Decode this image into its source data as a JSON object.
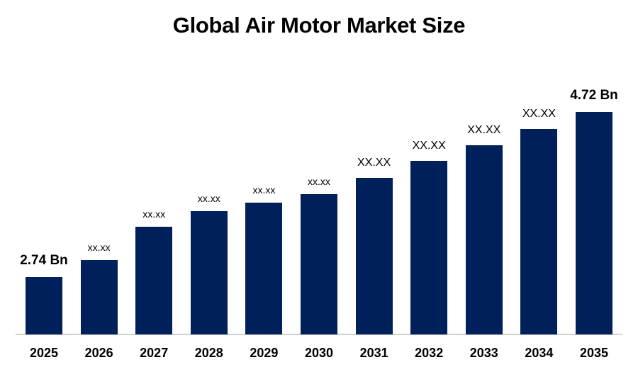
{
  "chart_data": {
    "type": "bar",
    "title": "Global Air Motor Market Size",
    "xlabel": "",
    "ylabel": "",
    "categories": [
      "2025",
      "2026",
      "2027",
      "2028",
      "2029",
      "2030",
      "2031",
      "2032",
      "2033",
      "2034",
      "2035"
    ],
    "values": [
      2.74,
      2.94,
      3.34,
      3.53,
      3.63,
      3.73,
      3.93,
      4.13,
      4.32,
      4.52,
      4.72
    ],
    "data_labels": [
      "2.74 Bn",
      "xx.xx",
      "xx.xx",
      "xx.xx",
      "xx.xx",
      "xx.xx",
      "XX.XX",
      "XX.XX",
      "XX.XX",
      "XX.XX",
      "4.72 Bn"
    ],
    "units": "Bn",
    "bar_color": "#00205b",
    "grid": false,
    "legend": null,
    "y_axis_visible": false
  },
  "title": "Global Air Motor Market Size"
}
